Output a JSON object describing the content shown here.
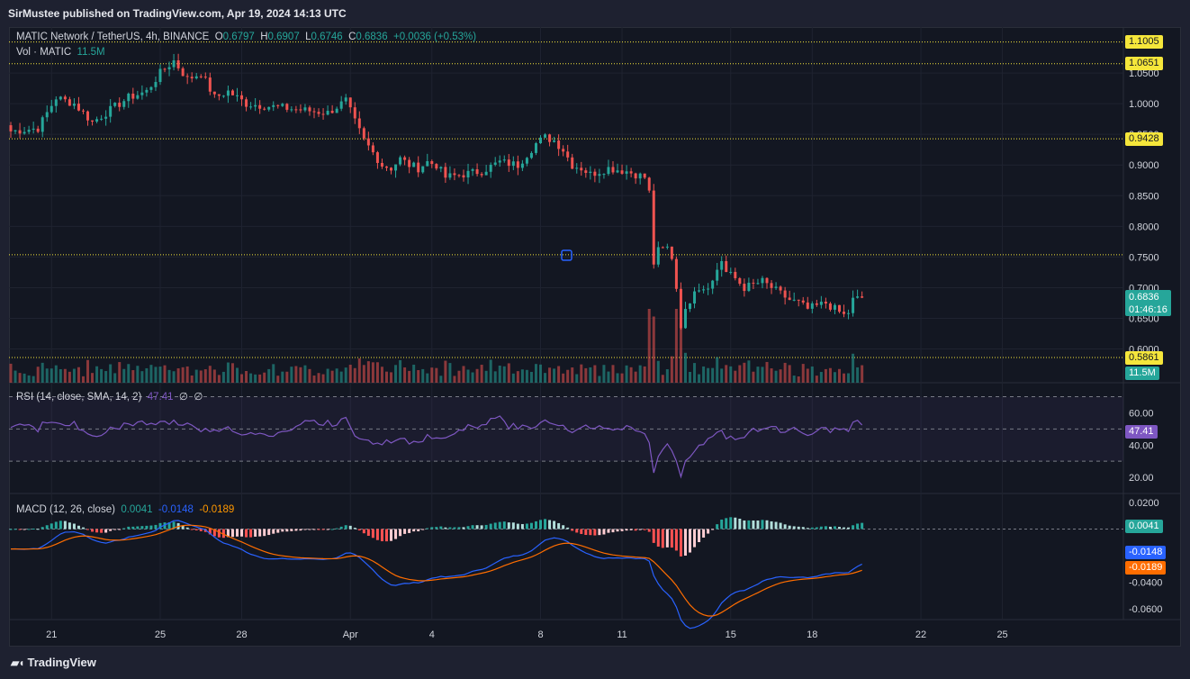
{
  "header": {
    "published": "SirMustee published on TradingView.com, Apr 19, 2024 14:13 UTC"
  },
  "footer": {
    "brand": "TradingView"
  },
  "legend": {
    "symbol": "MATIC Network / TetherUS, 4h, BINANCE",
    "o_label": "O",
    "o": "0.6797",
    "h_label": "H",
    "h": "0.6907",
    "l_label": "L",
    "l": "0.6746",
    "c_label": "C",
    "c": "0.6836",
    "change": "+0.0036 (+0.53%)",
    "vol_label": "Vol · MATIC",
    "vol": "11.5M",
    "rsi_label": "RSI (14, close, SMA, 14, 2)",
    "rsi": "47.41",
    "rsi_na1": "∅",
    "rsi_na2": "∅",
    "macd_label": "MACD (12, 26, close)",
    "macd": "0.0041",
    "macd_line": "-0.0148",
    "macd_signal": "-0.0189"
  },
  "price_tags": {
    "last": "0.6836",
    "countdown": "01:46:16",
    "vol": "11.5M",
    "rsi": "47.41",
    "macd_hist": "0.0041",
    "macd_line": "-0.0148",
    "macd_signal": "-0.0189"
  },
  "colors": {
    "up": "#26a69a",
    "down": "#ef5350",
    "level": "#f5e63b",
    "rsi": "#7e57c2",
    "macd": "#2962ff",
    "signal": "#ff6d00"
  },
  "chart_data": {
    "type": "candlestick",
    "y_ticks": [
      "1.0500",
      "1.0000",
      "0.9500",
      "0.9000",
      "0.8500",
      "0.8000",
      "0.7500",
      "0.7000",
      "0.6500",
      "0.6000"
    ],
    "ylim": [
      0.545,
      1.125
    ],
    "x_ticks": [
      {
        "label": "21",
        "pos": 9
      },
      {
        "label": "25",
        "pos": 33
      },
      {
        "label": "28",
        "pos": 51
      },
      {
        "label": "Apr",
        "pos": 75
      },
      {
        "label": "4",
        "pos": 93
      },
      {
        "label": "8",
        "pos": 117
      },
      {
        "label": "11",
        "pos": 135
      },
      {
        "label": "15",
        "pos": 159
      },
      {
        "label": "18",
        "pos": 177
      },
      {
        "label": "22",
        "pos": 201
      },
      {
        "label": "25",
        "pos": 219
      }
    ],
    "levels": [
      {
        "label": "1.1005",
        "value": 1.1005
      },
      {
        "label": "1.0651",
        "value": 1.0651
      },
      {
        "label": "0.9428",
        "value": 0.9428
      },
      {
        "label": "",
        "value": 0.7536
      },
      {
        "label": "0.5861",
        "value": 0.5861
      }
    ],
    "close_anchors": [
      [
        0,
        0.955
      ],
      [
        6,
        0.96
      ],
      [
        10,
        1.01
      ],
      [
        14,
        1.0
      ],
      [
        18,
        0.97
      ],
      [
        22,
        0.99
      ],
      [
        26,
        1.01
      ],
      [
        30,
        1.02
      ],
      [
        33,
        1.05
      ],
      [
        36,
        1.07
      ],
      [
        39,
        1.04
      ],
      [
        42,
        1.05
      ],
      [
        45,
        1.01
      ],
      [
        48,
        1.02
      ],
      [
        52,
        1.0
      ],
      [
        58,
        0.995
      ],
      [
        64,
        0.99
      ],
      [
        70,
        0.985
      ],
      [
        74,
        1.005
      ],
      [
        76,
        0.97
      ],
      [
        78,
        0.94
      ],
      [
        80,
        0.92
      ],
      [
        82,
        0.9
      ],
      [
        84,
        0.895
      ],
      [
        86,
        0.91
      ],
      [
        88,
        0.9
      ],
      [
        90,
        0.895
      ],
      [
        92,
        0.905
      ],
      [
        94,
        0.9
      ],
      [
        96,
        0.88
      ],
      [
        100,
        0.885
      ],
      [
        104,
        0.89
      ],
      [
        108,
        0.905
      ],
      [
        112,
        0.9
      ],
      [
        116,
        0.935
      ],
      [
        118,
        0.945
      ],
      [
        120,
        0.94
      ],
      [
        122,
        0.925
      ],
      [
        124,
        0.9
      ],
      [
        126,
        0.895
      ],
      [
        128,
        0.885
      ],
      [
        132,
        0.895
      ],
      [
        136,
        0.89
      ],
      [
        138,
        0.885
      ],
      [
        140,
        0.88
      ],
      [
        141,
        0.855
      ],
      [
        142,
        0.74
      ],
      [
        143,
        0.76
      ],
      [
        145,
        0.765
      ],
      [
        146,
        0.75
      ],
      [
        147,
        0.7
      ],
      [
        148,
        0.64
      ],
      [
        149,
        0.66
      ],
      [
        151,
        0.7
      ],
      [
        153,
        0.7
      ],
      [
        155,
        0.71
      ],
      [
        156,
        0.73
      ],
      [
        157,
        0.745
      ],
      [
        158,
        0.725
      ],
      [
        160,
        0.715
      ],
      [
        162,
        0.7
      ],
      [
        164,
        0.705
      ],
      [
        166,
        0.71
      ],
      [
        168,
        0.7
      ],
      [
        170,
        0.69
      ],
      [
        172,
        0.68
      ],
      [
        174,
        0.675
      ],
      [
        176,
        0.665
      ],
      [
        178,
        0.67
      ],
      [
        180,
        0.675
      ],
      [
        182,
        0.665
      ],
      [
        184,
        0.655
      ],
      [
        185,
        0.66
      ],
      [
        186,
        0.68
      ],
      [
        188,
        0.6836
      ]
    ],
    "rsi_ticks": [
      "60.00",
      "40.00",
      "20.00"
    ],
    "rsi_bands": [
      70,
      50,
      30
    ],
    "rsi_ylim": [
      10,
      77
    ],
    "macd_ticks": [
      "0.0200",
      "-0.0400",
      "-0.0600"
    ],
    "macd_ylim": [
      -0.068,
      0.024
    ]
  }
}
